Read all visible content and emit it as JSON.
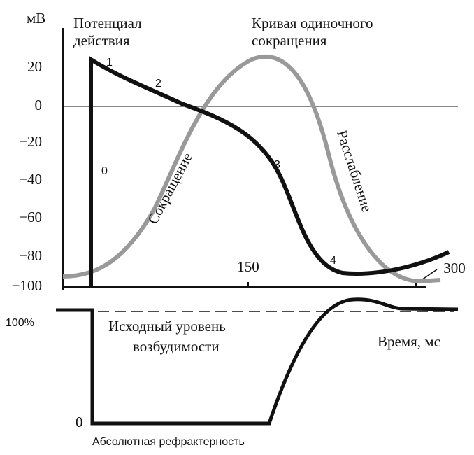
{
  "axis": {
    "unit": "мВ",
    "yticks": [
      "20",
      "0",
      "−20",
      "−40",
      "−60",
      "−80",
      "−100"
    ],
    "xticks": [
      "150",
      "300"
    ]
  },
  "labels": {
    "action_potential": [
      "Потенциал",
      "действия"
    ],
    "twitch": [
      "Кривая одиночного",
      "сокращения"
    ],
    "contraction": "Сокращение",
    "relaxation": "Расслабление",
    "phases": [
      "0",
      "1",
      "2",
      "3",
      "4"
    ]
  },
  "excitability": {
    "top": "100%",
    "bottom": "0",
    "baseline": [
      "Исходный уровень",
      "возбудимости"
    ],
    "time": "Время, мс",
    "refractory": "Абсолютная рефрактерность"
  }
}
